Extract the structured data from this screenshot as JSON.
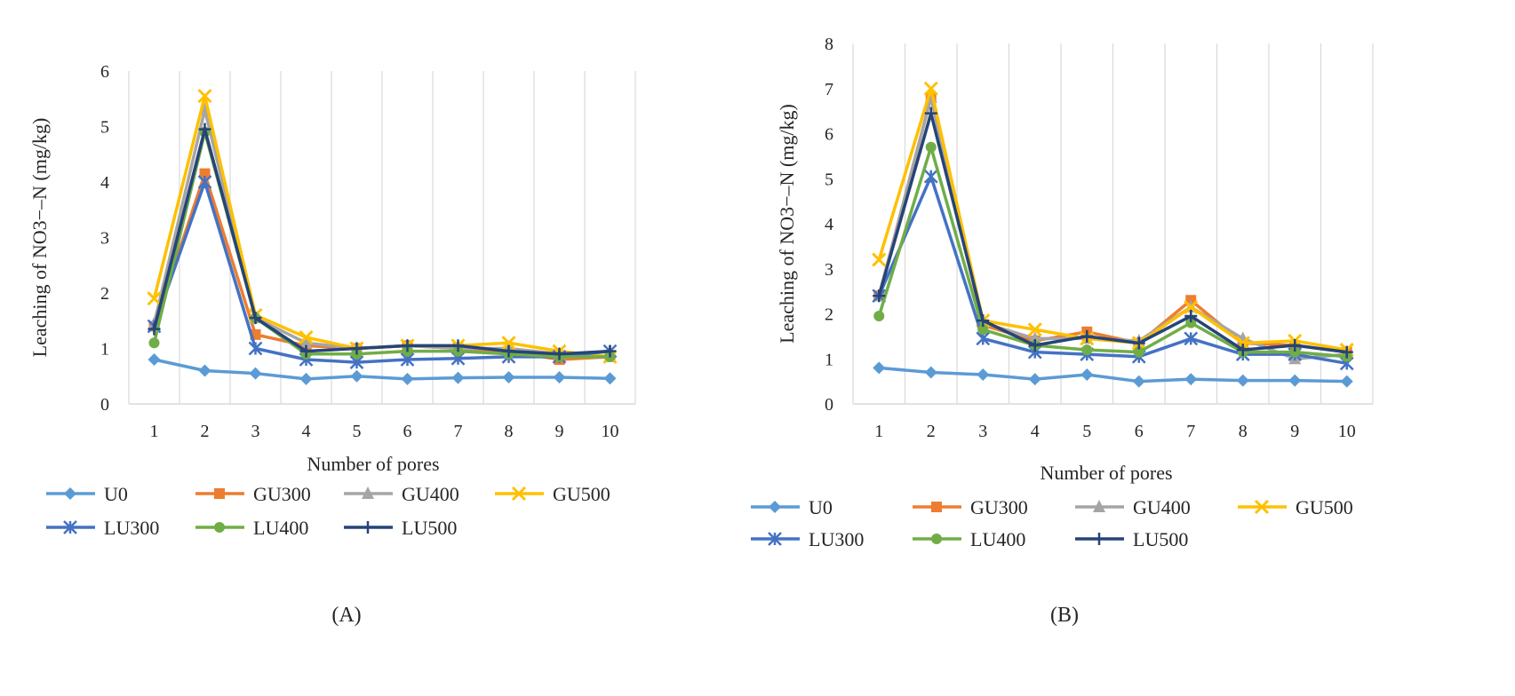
{
  "colors": {
    "U0": "#5b9bd5",
    "GU300": "#ed7d31",
    "GU400": "#a5a5a5",
    "GU500": "#ffc000",
    "LU300": "#4472c4",
    "LU400": "#70ad47",
    "LU500": "#264478",
    "grid": "#d9d9d9"
  },
  "chart_data": [
    {
      "type": "line",
      "panel_label": "A",
      "xlabel": "Number of pores",
      "ylabel": "Leaching of NO3−–N (mg/kg)",
      "ylim": [
        0,
        6
      ],
      "yticks": [
        0,
        1,
        2,
        3,
        4,
        5,
        6
      ],
      "categories": [
        "1",
        "2",
        "3",
        "4",
        "5",
        "6",
        "7",
        "8",
        "9",
        "10"
      ],
      "series": [
        {
          "name": "U0",
          "marker": "diamond",
          "values": [
            0.8,
            0.6,
            0.55,
            0.45,
            0.5,
            0.45,
            0.47,
            0.48,
            0.48,
            0.46
          ]
        },
        {
          "name": "GU300",
          "marker": "square",
          "values": [
            1.4,
            4.15,
            1.25,
            1.05,
            1.0,
            1.05,
            1.0,
            0.95,
            0.8,
            0.85
          ]
        },
        {
          "name": "GU400",
          "marker": "triangle",
          "values": [
            1.45,
            5.3,
            1.55,
            1.1,
            1.0,
            1.05,
            1.0,
            1.0,
            0.9,
            0.85
          ]
        },
        {
          "name": "GU500",
          "marker": "x",
          "values": [
            1.9,
            5.55,
            1.6,
            1.2,
            1.0,
            1.05,
            1.05,
            1.1,
            0.95,
            0.85
          ]
        },
        {
          "name": "LU300",
          "marker": "star",
          "values": [
            1.4,
            4.0,
            1.0,
            0.8,
            0.75,
            0.8,
            0.82,
            0.85,
            0.85,
            0.95
          ]
        },
        {
          "name": "LU400",
          "marker": "circle",
          "values": [
            1.1,
            4.9,
            1.55,
            0.9,
            0.9,
            0.95,
            0.95,
            0.9,
            0.85,
            0.85
          ]
        },
        {
          "name": "LU500",
          "marker": "plus",
          "values": [
            1.35,
            4.95,
            1.55,
            0.95,
            1.0,
            1.05,
            1.05,
            0.95,
            0.9,
            0.95
          ]
        }
      ]
    },
    {
      "type": "line",
      "panel_label": "B",
      "xlabel": "Number of pores",
      "ylabel": "Leaching of NO3−–N (mg/kg)",
      "ylim": [
        0,
        8
      ],
      "yticks": [
        0,
        1,
        2,
        3,
        4,
        5,
        6,
        7,
        8
      ],
      "categories": [
        "1",
        "2",
        "3",
        "4",
        "5",
        "6",
        "7",
        "8",
        "9",
        "10"
      ],
      "series": [
        {
          "name": "U0",
          "marker": "diamond",
          "values": [
            0.8,
            0.7,
            0.65,
            0.55,
            0.65,
            0.5,
            0.55,
            0.52,
            0.52,
            0.5
          ]
        },
        {
          "name": "GU300",
          "marker": "square",
          "values": [
            2.4,
            6.8,
            1.75,
            1.4,
            1.6,
            1.35,
            2.3,
            1.35,
            1.3,
            1.15
          ]
        },
        {
          "name": "GU400",
          "marker": "triangle",
          "values": [
            2.4,
            6.8,
            1.8,
            1.45,
            1.45,
            1.4,
            2.15,
            1.45,
            1.0,
            1.1
          ]
        },
        {
          "name": "GU500",
          "marker": "x",
          "values": [
            3.2,
            7.0,
            1.85,
            1.65,
            1.45,
            1.35,
            2.15,
            1.35,
            1.4,
            1.2
          ]
        },
        {
          "name": "LU300",
          "marker": "star",
          "values": [
            2.4,
            5.05,
            1.45,
            1.15,
            1.1,
            1.05,
            1.45,
            1.1,
            1.1,
            0.9
          ]
        },
        {
          "name": "LU400",
          "marker": "circle",
          "values": [
            1.95,
            5.7,
            1.65,
            1.3,
            1.2,
            1.15,
            1.8,
            1.15,
            1.15,
            1.05
          ]
        },
        {
          "name": "LU500",
          "marker": "plus",
          "values": [
            2.4,
            6.45,
            1.85,
            1.3,
            1.5,
            1.35,
            1.95,
            1.2,
            1.3,
            1.15
          ]
        }
      ]
    }
  ]
}
